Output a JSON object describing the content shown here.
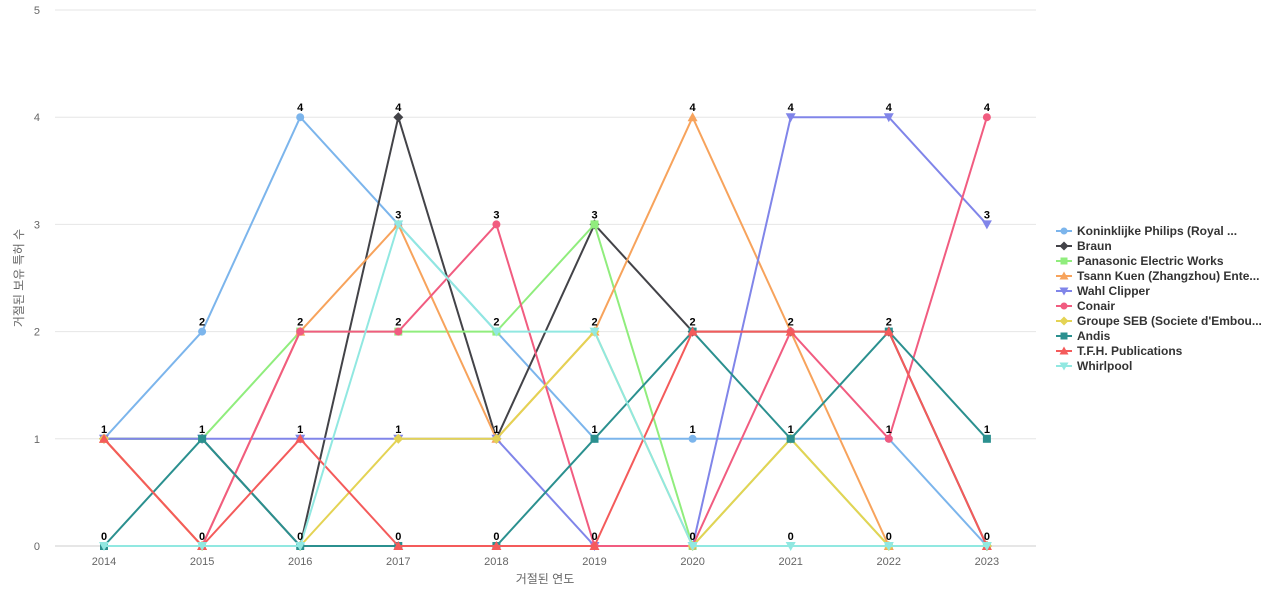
{
  "chart_data": {
    "type": "line",
    "title": "",
    "xlabel": "거절된 연도",
    "ylabel": "거절된 보유 특허 수",
    "x": [
      2014,
      2015,
      2016,
      2017,
      2018,
      2019,
      2020,
      2021,
      2022,
      2023
    ],
    "ylim": [
      0,
      5
    ],
    "yticks": [
      0,
      1,
      2,
      3,
      4,
      5
    ],
    "grid": true,
    "legend_position": "right",
    "series": [
      {
        "name": "Koninklijke Philips (Royal ...",
        "color": "#7cb5ec",
        "marker": "circle",
        "values": [
          1,
          2,
          4,
          3,
          2,
          1,
          1,
          1,
          1,
          0
        ]
      },
      {
        "name": "Braun",
        "color": "#434348",
        "marker": "diamond",
        "values": [
          1,
          1,
          0,
          4,
          1,
          3,
          2,
          2,
          2,
          0
        ]
      },
      {
        "name": "Panasonic Electric Works",
        "color": "#90ed7d",
        "marker": "square",
        "values": [
          1,
          1,
          2,
          2,
          2,
          3,
          0,
          1,
          0,
          0
        ]
      },
      {
        "name": "Tsann Kuen (Zhangzhou) Ente...",
        "color": "#f7a35c",
        "marker": "triangle",
        "values": [
          1,
          0,
          2,
          3,
          1,
          2,
          4,
          2,
          0,
          0
        ]
      },
      {
        "name": "Wahl Clipper",
        "color": "#8085e9",
        "marker": "triangle-down",
        "values": [
          1,
          1,
          1,
          1,
          1,
          0,
          0,
          4,
          4,
          3
        ]
      },
      {
        "name": "Conair",
        "color": "#f15c80",
        "marker": "circle",
        "values": [
          1,
          0,
          2,
          2,
          3,
          0,
          0,
          2,
          1,
          4
        ]
      },
      {
        "name": "Groupe SEB (Societe d'Embou...",
        "color": "#e4d354",
        "marker": "diamond",
        "values": [
          1,
          0,
          0,
          1,
          1,
          2,
          0,
          1,
          0,
          0
        ]
      },
      {
        "name": "Andis",
        "color": "#2b908f",
        "marker": "square",
        "values": [
          0,
          1,
          0,
          0,
          0,
          1,
          2,
          1,
          2,
          1
        ]
      },
      {
        "name": "T.F.H. Publications",
        "color": "#f45b5b",
        "marker": "triangle",
        "values": [
          1,
          0,
          1,
          0,
          0,
          0,
          2,
          2,
          2,
          0
        ]
      },
      {
        "name": "Whirlpool",
        "color": "#91e8e1",
        "marker": "triangle-down",
        "values": [
          0,
          0,
          0,
          3,
          2,
          2,
          0,
          0,
          0,
          0
        ]
      }
    ],
    "data_labels": [
      {
        "x": 2014,
        "value": 1
      },
      {
        "x": 2014,
        "value": 0
      },
      {
        "x": 2015,
        "value": 2
      },
      {
        "x": 2015,
        "value": 1
      },
      {
        "x": 2015,
        "value": 0
      },
      {
        "x": 2016,
        "value": 4
      },
      {
        "x": 2016,
        "value": 2
      },
      {
        "x": 2016,
        "value": 1
      },
      {
        "x": 2016,
        "value": 0
      },
      {
        "x": 2017,
        "value": 4
      },
      {
        "x": 2017,
        "value": 3
      },
      {
        "x": 2017,
        "value": 2
      },
      {
        "x": 2017,
        "value": 1
      },
      {
        "x": 2017,
        "value": 0
      },
      {
        "x": 2018,
        "value": 3
      },
      {
        "x": 2018,
        "value": 2
      },
      {
        "x": 2018,
        "value": 1
      },
      {
        "x": 2018,
        "value": 0
      },
      {
        "x": 2019,
        "value": 3
      },
      {
        "x": 2019,
        "value": 2
      },
      {
        "x": 2019,
        "value": 1
      },
      {
        "x": 2019,
        "value": 0
      },
      {
        "x": 2020,
        "value": 4
      },
      {
        "x": 2020,
        "value": 2
      },
      {
        "x": 2020,
        "value": 1
      },
      {
        "x": 2020,
        "value": 0
      },
      {
        "x": 2021,
        "value": 4
      },
      {
        "x": 2021,
        "value": 2
      },
      {
        "x": 2021,
        "value": 1
      },
      {
        "x": 2021,
        "value": 0
      },
      {
        "x": 2022,
        "value": 4
      },
      {
        "x": 2022,
        "value": 2
      },
      {
        "x": 2022,
        "value": 1
      },
      {
        "x": 2022,
        "value": 0
      },
      {
        "x": 2023,
        "value": 4
      },
      {
        "x": 2023,
        "value": 3
      },
      {
        "x": 2023,
        "value": 1
      },
      {
        "x": 2023,
        "value": 0
      }
    ]
  }
}
